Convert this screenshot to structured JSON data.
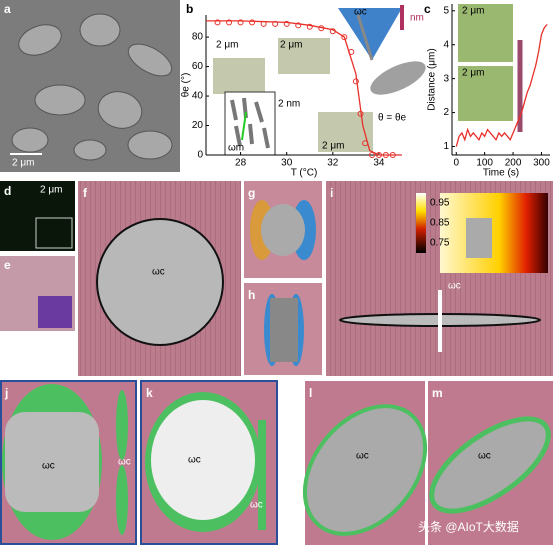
{
  "panel_labels": [
    "a",
    "b",
    "c",
    "d",
    "e",
    "f",
    "g",
    "h",
    "i",
    "j",
    "k",
    "l",
    "m"
  ],
  "scale_bars": [
    "2 μm",
    "2 μm",
    "2 μm",
    "2 μm",
    "2 μm",
    "2 μm",
    "2 μm"
  ],
  "annotations": {
    "b_omega_c": "ωc",
    "b_n_m": "nm",
    "b_theta": "θ = θe",
    "b_2nm": "2 nm",
    "b_omega_m": "ωm"
  },
  "symbols": [
    "ωc",
    "ωc",
    "ωc",
    "ωc",
    "ωc",
    "ωc",
    "ωc",
    "ωc"
  ],
  "colorbar_ticks": [
    0.95,
    0.85,
    0.75
  ],
  "watermark": "头条 @AIoT大数据",
  "chart_data": [
    {
      "type": "scatter",
      "xlabel": "T (°C)",
      "ylabel": "θe (°)",
      "xlim": [
        26.5,
        35
      ],
      "ylim": [
        0,
        95
      ],
      "xticks": [
        28,
        30,
        32,
        34
      ],
      "yticks": [
        0,
        20,
        40,
        60,
        80
      ],
      "series": [
        {
          "color": "#e8302a",
          "mode": "markers",
          "x": [
            27,
            27.5,
            28,
            28.5,
            29,
            29.5,
            30,
            30.5,
            31,
            31.5,
            32,
            32.5,
            32.8,
            33,
            33.2,
            33.4,
            33.7,
            34,
            34.3,
            34.6
          ],
          "values": [
            90,
            90,
            90,
            90,
            89,
            89,
            89,
            88,
            87,
            86,
            84,
            80,
            70,
            50,
            28,
            8,
            0,
            0,
            0,
            0
          ]
        },
        {
          "color": "#e8302a",
          "mode": "lines",
          "x": [
            26.5,
            28,
            30,
            31,
            32,
            32.5,
            33,
            33.3,
            33.6,
            34,
            35
          ],
          "values": [
            91,
            91,
            90,
            88,
            85,
            80,
            55,
            20,
            3,
            0,
            0
          ]
        }
      ]
    },
    {
      "type": "line",
      "xlabel": "Time (s)",
      "ylabel": "Distance (μm)",
      "xlim": [
        -15,
        330
      ],
      "ylim": [
        0.75,
        5.2
      ],
      "xticks": [
        0,
        100,
        200,
        300
      ],
      "yticks": [
        1,
        2,
        3,
        4,
        5
      ],
      "series": [
        {
          "color": "#e8302a",
          "mode": "lines",
          "x": [
            0,
            10,
            20,
            30,
            40,
            50,
            60,
            70,
            80,
            90,
            100,
            110,
            120,
            130,
            140,
            150,
            160,
            170,
            180,
            190,
            200,
            210,
            220,
            230,
            240,
            250,
            260,
            270,
            280,
            290,
            300,
            310,
            320
          ],
          "values": [
            1.0,
            1.3,
            1.4,
            1.2,
            1.5,
            1.3,
            1.4,
            1.3,
            1.2,
            1.4,
            1.3,
            1.5,
            1.4,
            1.3,
            1.2,
            1.4,
            1.3,
            1.4,
            1.3,
            1.2,
            1.4,
            1.6,
            1.8,
            2.0,
            2.3,
            2.6,
            2.8,
            3.1,
            3.4,
            3.8,
            4.3,
            4.5,
            4.6
          ]
        }
      ]
    }
  ]
}
